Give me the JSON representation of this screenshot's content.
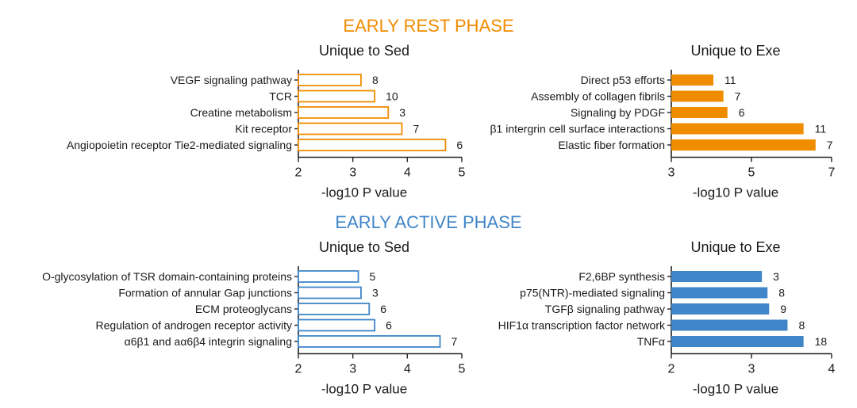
{
  "sections": {
    "rest": {
      "title": "EARLY REST PHASE",
      "color": "#f08c00"
    },
    "active": {
      "title": "EARLY ACTIVE PHASE",
      "color": "#3f85c8"
    }
  },
  "chart_data": [
    {
      "type": "bar",
      "orientation": "horizontal",
      "section": "rest",
      "title": "Unique to Sed",
      "xlabel": "-log10 P value",
      "xlim": [
        2,
        5
      ],
      "xticks": [
        2,
        3,
        4,
        5
      ],
      "style": "outline",
      "categories": [
        "VEGF signaling pathway",
        "TCR",
        "Creatine metabolism",
        "Kit receptor",
        "Angiopoietin receptor Tie2-mediated signaling"
      ],
      "values": [
        3.15,
        3.4,
        3.65,
        3.9,
        4.7
      ],
      "labels": [
        "8",
        "10",
        "3",
        "7",
        "6"
      ]
    },
    {
      "type": "bar",
      "orientation": "horizontal",
      "section": "rest",
      "title": "Unique to Exe",
      "xlabel": "-log10 P value",
      "xlim": [
        3,
        7
      ],
      "xticks": [
        3,
        5,
        7
      ],
      "style": "filled",
      "categories": [
        "Direct p53 efforts",
        "Assembly of collagen fibrils",
        "Signaling by PDGF",
        "β1 intergrin cell surface interactions",
        "Elastic fiber formation"
      ],
      "values": [
        4.05,
        4.3,
        4.4,
        6.3,
        6.6
      ],
      "labels": [
        "11",
        "7",
        "6",
        "11",
        "7"
      ]
    },
    {
      "type": "bar",
      "orientation": "horizontal",
      "section": "active",
      "title": "Unique to Sed",
      "xlabel": "-log10 P value",
      "xlim": [
        2,
        5
      ],
      "xticks": [
        2,
        3,
        4,
        5
      ],
      "style": "outline",
      "categories": [
        "O-glycosylation of TSR domain-containing proteins",
        "Formation of annular Gap junctions",
        "ECM proteoglycans",
        "Regulation of androgen receptor activity",
        "α6β1 and aα6β4 integrin signaling"
      ],
      "values": [
        3.1,
        3.15,
        3.3,
        3.4,
        4.6
      ],
      "labels": [
        "5",
        "3",
        "6",
        "6",
        "7"
      ]
    },
    {
      "type": "bar",
      "orientation": "horizontal",
      "section": "active",
      "title": "Unique to Exe",
      "xlabel": "-log10 P value",
      "xlim": [
        2,
        4
      ],
      "xticks": [
        2,
        3,
        4
      ],
      "style": "filled",
      "categories": [
        "F2,6BP synthesis",
        "p75(NTR)-mediated signaling",
        "TGFβ signaling pathway",
        "HIF1α transcription factor network",
        "TNFα"
      ],
      "values": [
        3.13,
        3.2,
        3.22,
        3.45,
        3.65
      ],
      "labels": [
        "3",
        "8",
        "9",
        "8",
        "18"
      ]
    }
  ]
}
